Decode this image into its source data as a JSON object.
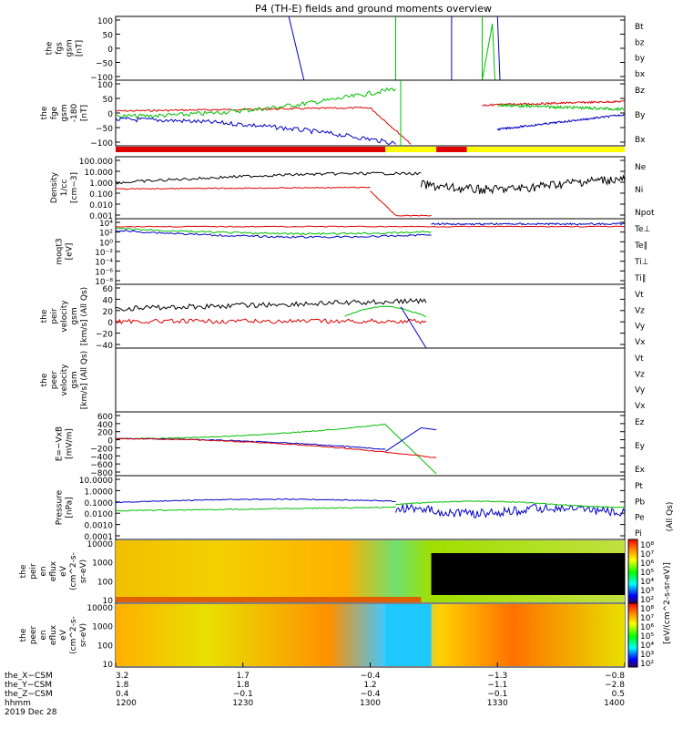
{
  "title": "P4 (TH-E) fields and ground moments overview",
  "colors": {
    "black": "#000000",
    "red": "#e00000",
    "green": "#00c000",
    "blue": "#0000c8",
    "yellow": "#ffff00"
  },
  "chart_data": [
    {
      "panel": "fgs",
      "type": "line",
      "ylabel": [
        "the",
        "fgs",
        "gsm",
        "[nT]"
      ],
      "yticks": [
        "100",
        "50",
        "0",
        "−50",
        "−100"
      ],
      "ylim": [
        -100,
        100
      ],
      "legend": [
        {
          "label": "Bt",
          "color": "black"
        },
        {
          "label": "bz",
          "color": "red"
        },
        {
          "label": "by",
          "color": "green"
        },
        {
          "label": "bx",
          "color": "blue"
        }
      ]
    },
    {
      "panel": "fge",
      "type": "line",
      "ylabel": [
        "the",
        "fge",
        "gsm",
        "-180",
        "[nT]"
      ],
      "yticks": [
        "100",
        "50",
        "0",
        "−50",
        "−100"
      ],
      "ylim": [
        -120,
        110
      ],
      "legend": [
        {
          "label": "Bz",
          "color": "red"
        },
        {
          "label": "By",
          "color": "green"
        },
        {
          "label": "Bx",
          "color": "blue"
        }
      ]
    },
    {
      "panel": "density",
      "type": "line",
      "ylabel": [
        "Density",
        "1/cc",
        "[cm−3]"
      ],
      "yticks": [
        "100.000",
        "10.000",
        "1.000",
        "0.100",
        "0.010",
        "0.001"
      ],
      "legend": [
        {
          "label": "Ne",
          "color": "red"
        },
        {
          "label": "Ni",
          "color": "black"
        },
        {
          "label": "Npot",
          "color": "blue"
        }
      ]
    },
    {
      "panel": "temperature",
      "type": "line",
      "ylabel": [
        "moqt3",
        "[eV]"
      ],
      "yticks": [
        "10⁴",
        "10²",
        "10⁰",
        "10⁻²",
        "10⁻⁴",
        "10⁻⁶",
        "10⁻⁸"
      ],
      "legend": [
        {
          "label": "Te⊥",
          "color": "red"
        },
        {
          "label": "Te∥",
          "color": "black"
        },
        {
          "label": "Ti⊥",
          "color": "green"
        },
        {
          "label": "Ti∥",
          "color": "green"
        }
      ]
    },
    {
      "panel": "peir_velocity",
      "type": "line",
      "ylabel": [
        "the",
        "peir",
        "velocity",
        "gsm",
        "[km/s] (All Qs)"
      ],
      "yticks": [
        "60",
        "40",
        "20",
        "0",
        "−20",
        "−40"
      ],
      "ylim": [
        -40,
        60
      ],
      "legend": [
        {
          "label": "Vt",
          "color": "black"
        },
        {
          "label": "Vz",
          "color": "red"
        },
        {
          "label": "Vy",
          "color": "green"
        },
        {
          "label": "Vx",
          "color": "blue"
        }
      ]
    },
    {
      "panel": "peer_velocity",
      "type": "line",
      "ylabel": [
        "the",
        "peer",
        "velocity",
        "gsm",
        "[km/s] (All Qs)"
      ],
      "yticks": [],
      "legend": [
        {
          "label": "Vt",
          "color": "black"
        },
        {
          "label": "Vz",
          "color": "red"
        },
        {
          "label": "Vy",
          "color": "green"
        },
        {
          "label": "Vx",
          "color": "blue"
        }
      ]
    },
    {
      "panel": "efield",
      "type": "line",
      "ylabel": [
        "E=−VxB",
        "[mV/m]"
      ],
      "yticks": [
        "600",
        "400",
        "200",
        "0",
        "−200",
        "−400",
        "−600",
        "−800"
      ],
      "ylim": [
        -800,
        600
      ],
      "legend": [
        {
          "label": "Ez",
          "color": "red"
        },
        {
          "label": "Ey",
          "color": "green"
        },
        {
          "label": "Ex",
          "color": "blue"
        }
      ]
    },
    {
      "panel": "pressure",
      "type": "line",
      "ylabel": [
        "Pressure",
        "[nPa]"
      ],
      "yticks": [
        "10.0000",
        "1.0000",
        "0.1000",
        "0.0100",
        "0.0010",
        "0.0001"
      ],
      "legend": [
        {
          "label": "Pt",
          "color": "black"
        },
        {
          "label": "Pb",
          "color": "red"
        },
        {
          "label": "Pe",
          "color": "green"
        },
        {
          "label": "Pi",
          "color": "blue"
        }
      ],
      "side_label": "(All Qs)"
    },
    {
      "panel": "peir_spectrogram",
      "type": "heatmap",
      "ylabel": [
        "the",
        "peir",
        "en",
        "eflux",
        "eV",
        "(cm^2-s-",
        "sr-eV)"
      ],
      "yticks": [
        "10000",
        "1000",
        "100",
        "10"
      ]
    },
    {
      "panel": "peer_spectrogram",
      "type": "heatmap",
      "ylabel": [
        "the",
        "peer",
        "en",
        "eflux",
        "eV",
        "(cm^2-s-",
        "sr-eV)"
      ],
      "yticks": [
        "10000",
        "1000",
        "100",
        "10"
      ]
    }
  ],
  "colorbar": {
    "ticks_top": [
      "10⁸",
      "10⁷",
      "10⁶",
      "10⁵",
      "10⁴",
      "10³",
      "10²"
    ],
    "ticks_bottom": [
      "10⁸",
      "10⁷",
      "10⁶",
      "10⁵",
      "10⁴",
      "10³",
      "10²"
    ],
    "label": "[eV/(cm^2-s-sr-eV)]"
  },
  "x_axis": {
    "columns": [
      {
        "x_csm": "3.2",
        "y_csm": "1.8",
        "z_csm": "0.4",
        "hhmm": "1200"
      },
      {
        "x_csm": "1.7",
        "y_csm": "1.8",
        "z_csm": "−0.1",
        "hhmm": "1230"
      },
      {
        "x_csm": "−0.4",
        "y_csm": "1.2",
        "z_csm": "−0.4",
        "hhmm": "1300"
      },
      {
        "x_csm": "−1.3",
        "y_csm": "−1.1",
        "z_csm": "−0.1",
        "hhmm": "1330"
      },
      {
        "x_csm": "−0.8",
        "y_csm": "−2.8",
        "z_csm": "0.5",
        "hhmm": "1400"
      }
    ],
    "row_labels": [
      "the_X−CSM",
      "the_Y−CSM",
      "the_Z−CSM",
      "hhmm"
    ],
    "date": "2019 Dec 28"
  }
}
